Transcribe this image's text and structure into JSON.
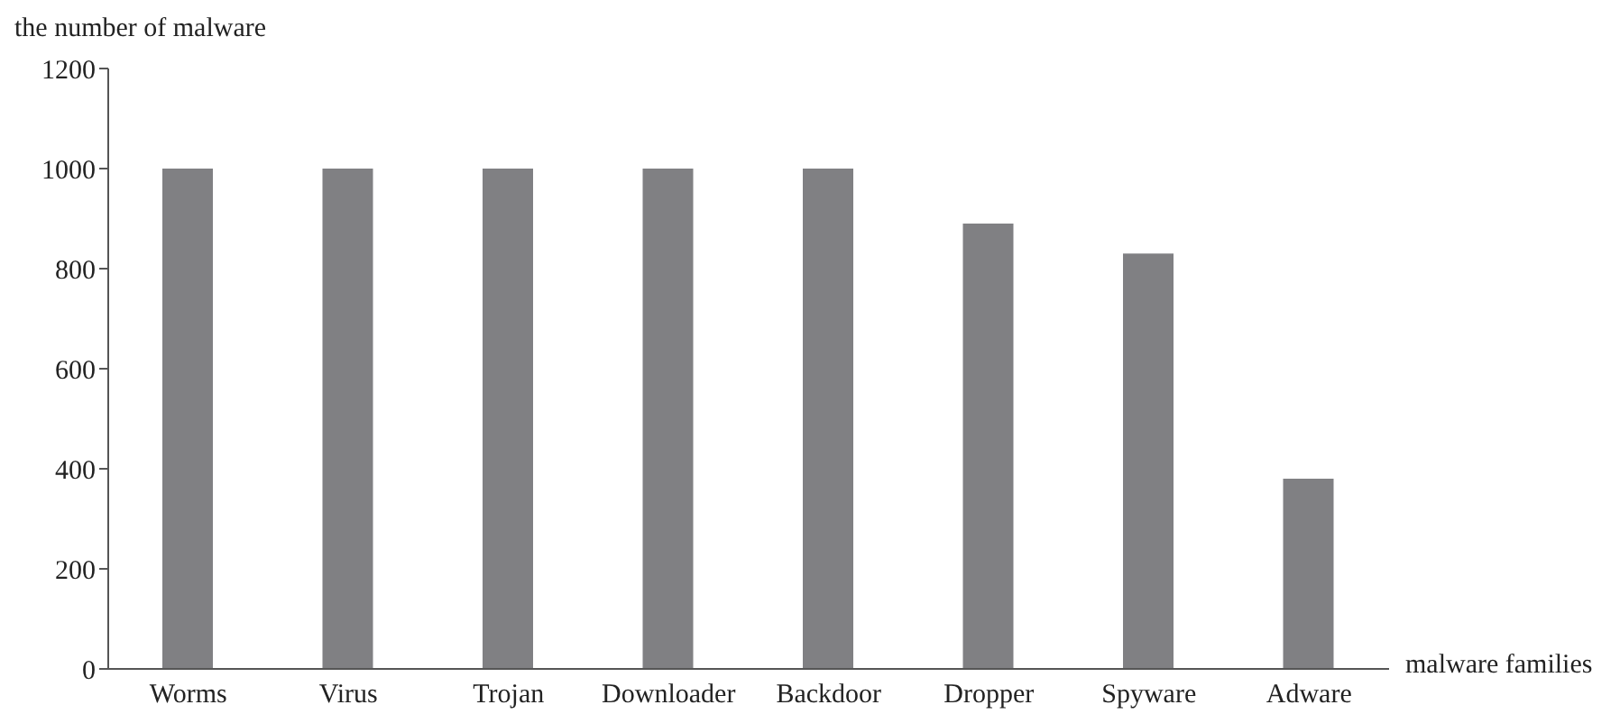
{
  "chart_data": {
    "type": "bar",
    "xlabel": "malware families",
    "ylabel": "the number of malware",
    "categories": [
      "Worms",
      "Virus",
      "Trojan",
      "Downloader",
      "Backdoor",
      "Dropper",
      "Spyware",
      "Adware"
    ],
    "values": [
      1000,
      1000,
      1000,
      1000,
      1000,
      890,
      830,
      380
    ],
    "color": "#808083",
    "ylim": [
      0,
      1200
    ],
    "yticks": [
      0,
      200,
      400,
      600,
      800,
      1000,
      1200
    ],
    "grid": false,
    "legend": false
  }
}
